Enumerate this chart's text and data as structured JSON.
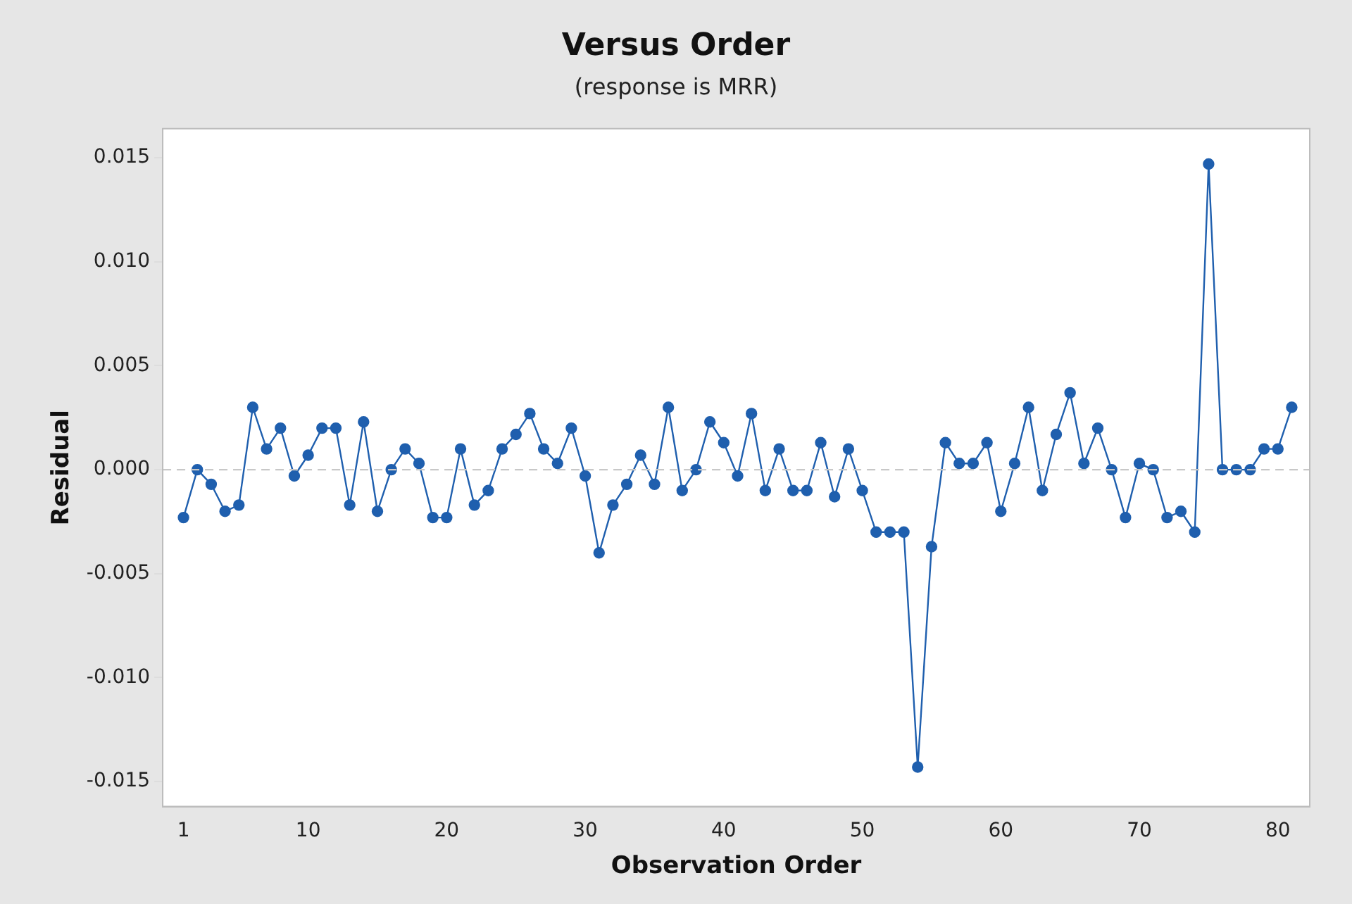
{
  "chart_data": {
    "type": "line",
    "title": "Versus Order",
    "subtitle": "(response is MRR)",
    "xlabel": "Observation Order",
    "ylabel": "Residual",
    "x": [
      1,
      2,
      3,
      4,
      5,
      6,
      7,
      8,
      9,
      10,
      11,
      12,
      13,
      14,
      15,
      16,
      17,
      18,
      19,
      20,
      21,
      22,
      23,
      24,
      25,
      26,
      27,
      28,
      29,
      30,
      31,
      32,
      33,
      34,
      35,
      36,
      37,
      38,
      39,
      40,
      41,
      42,
      43,
      44,
      45,
      46,
      47,
      48,
      49,
      50,
      51,
      52,
      53,
      54,
      55,
      56,
      57,
      58,
      59,
      60,
      61,
      62,
      63,
      64,
      65,
      66,
      67,
      68,
      69,
      70,
      71,
      72,
      73,
      74,
      75,
      76,
      77,
      78,
      79,
      80,
      81
    ],
    "series": [
      {
        "color": "#1f5fae",
        "values": [
          -0.0023,
          0,
          -0.0007,
          -0.002,
          -0.0017,
          0.003,
          0.001,
          0.002,
          -0.0003,
          0.0007,
          0.002,
          0.002,
          -0.0017,
          0.0023,
          -0.002,
          0,
          0.001,
          0.0003,
          -0.0023,
          -0.0023,
          0.001,
          -0.0017,
          -0.001,
          0.001,
          0.0017,
          0.0027,
          0.001,
          0.0003,
          0.002,
          -0.0003,
          -0.004,
          -0.0017,
          -0.0007,
          0.0007,
          -0.0007,
          0.003,
          -0.001,
          0,
          0.0023,
          0.0013,
          -0.0003,
          0.0027,
          -0.001,
          0.001,
          -0.001,
          -0.001,
          0.0013,
          -0.0013,
          0.001,
          -0.001,
          -0.003,
          -0.003,
          -0.003,
          -0.0143,
          -0.0037,
          0.0013,
          0.0003,
          0.0003,
          0.0013,
          -0.002,
          0.0003,
          0.003,
          -0.001,
          0.0017,
          0.0037,
          0.0003,
          0.002,
          0,
          -0.0023,
          0.0003,
          0,
          -0.0023,
          -0.002,
          -0.003,
          0.0147,
          0,
          0,
          0,
          0.001,
          0.001,
          0.003
        ]
      }
    ],
    "xlim": [
      -0.5,
      82.3
    ],
    "xticks": [
      1,
      10,
      20,
      30,
      40,
      50,
      60,
      70,
      80
    ],
    "ylim": [
      -0.0162,
      0.0164
    ],
    "yticks": [
      {
        "value": -0.015,
        "label": "-0.015"
      },
      {
        "value": -0.01,
        "label": "-0.010"
      },
      {
        "value": -0.005,
        "label": "-0.005"
      },
      {
        "value": 0,
        "label": "0.000"
      },
      {
        "value": 0.005,
        "label": "0.005"
      },
      {
        "value": 0.01,
        "label": "0.010"
      },
      {
        "value": 0.015,
        "label": "0.015"
      }
    ],
    "ref_lines": [
      {
        "axis": "y",
        "value": 0,
        "color": "#c8c8c8",
        "line_style": "dashed"
      }
    ],
    "grid": false,
    "legend": false,
    "marker": "circle",
    "line_style": "solid"
  }
}
